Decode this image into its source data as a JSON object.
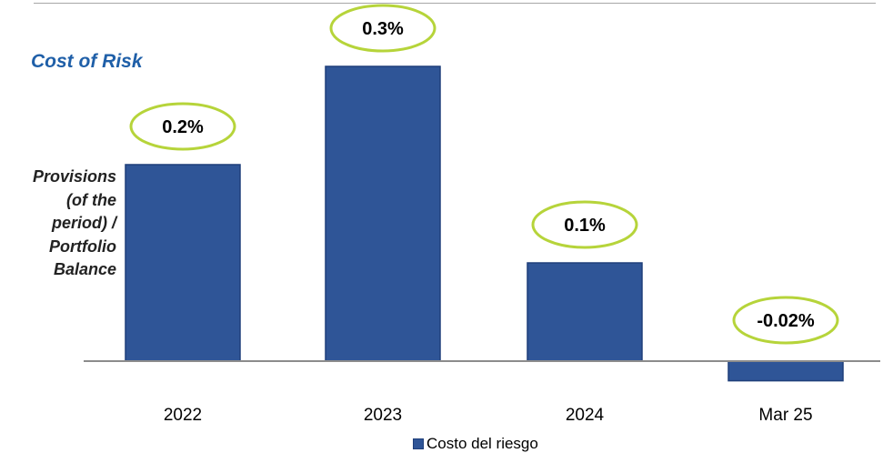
{
  "chart_data": {
    "type": "bar",
    "title": "Cost of Risk",
    "ylabel_lines": [
      "Provisions",
      "(of the",
      "period) /",
      "Portfolio",
      "Balance"
    ],
    "xlabel": "",
    "categories": [
      "2022",
      "2023",
      "2024",
      "Mar 25"
    ],
    "series": [
      {
        "name": "Costo del riesgo",
        "values": [
          0.2,
          0.3,
          0.1,
          -0.02
        ],
        "data_labels": [
          "0.2%",
          "0.3%",
          "0.1%",
          "-0.02%"
        ]
      }
    ],
    "ylim": [
      -0.02,
      0.3
    ],
    "grid": false,
    "legend": "bottom-center",
    "colors": {
      "bar": "#2f5597",
      "bar_border": "#1f3f7a",
      "label_bubble_border": "#b6d43a",
      "title": "#1f5fa8"
    }
  }
}
